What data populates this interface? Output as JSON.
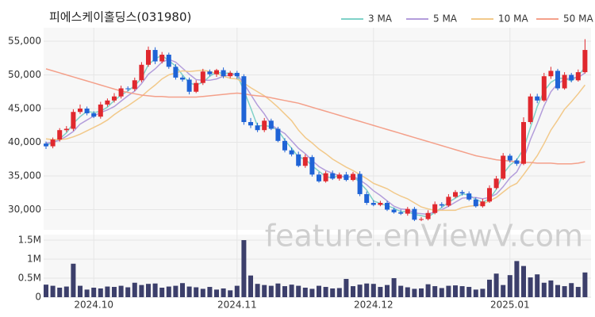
{
  "chart_data": [
    {
      "type": "candlestick",
      "title": "피에스케이홀딩스(031980)",
      "watermark": "feature.enViewV.com",
      "categories": [
        null,
        null,
        null,
        null,
        null,
        null,
        null,
        "2024.10",
        null,
        null,
        null,
        null,
        null,
        null,
        null,
        null,
        null,
        null,
        null,
        null,
        null,
        null,
        null,
        null,
        null,
        null,
        null,
        null,
        "2024.11",
        null,
        null,
        null,
        null,
        null,
        null,
        null,
        null,
        null,
        null,
        null,
        null,
        null,
        null,
        null,
        null,
        null,
        null,
        null,
        "2024.12",
        null,
        null,
        null,
        null,
        null,
        null,
        null,
        null,
        null,
        null,
        null,
        null,
        null,
        null,
        null,
        null,
        null,
        null,
        null,
        "2025.01",
        null,
        null,
        null,
        null,
        null,
        null,
        null,
        null,
        null,
        null,
        null
      ],
      "up_color": "#e0282e",
      "down_color": "#1f63d6",
      "open": [
        39800,
        39400,
        40400,
        41800,
        42000,
        44500,
        45000,
        44300,
        43800,
        45600,
        46200,
        46800,
        48000,
        47900,
        49200,
        51500,
        53700,
        52000,
        53000,
        51200,
        49600,
        49300,
        47500,
        48800,
        50500,
        50100,
        50700,
        49800,
        50300,
        49800,
        43000,
        42500,
        41800,
        43200,
        42000,
        40200,
        38800,
        38200,
        36500,
        37800,
        35200,
        34200,
        35400,
        34600,
        35200,
        34400,
        35300,
        32300,
        31000,
        30700,
        31000,
        30000,
        29600,
        29400,
        30100,
        28500,
        28600,
        29500,
        30800,
        30600,
        31900,
        32600,
        32400,
        31500,
        30500,
        31200,
        33200,
        34600,
        38000,
        37300,
        36800,
        43000,
        46800,
        46200,
        49800,
        50600,
        48000,
        50000,
        49200,
        50400
      ],
      "high": [
        40100,
        40700,
        42100,
        42400,
        44900,
        45600,
        45300,
        44600,
        46000,
        46500,
        47300,
        48400,
        48300,
        49600,
        51900,
        54200,
        54100,
        53400,
        53300,
        51600,
        49900,
        49600,
        49200,
        50900,
        50800,
        50900,
        51100,
        50600,
        50600,
        50100,
        43600,
        42900,
        43600,
        43500,
        42300,
        40600,
        39200,
        38600,
        38200,
        38100,
        35600,
        35700,
        35800,
        35500,
        35600,
        35600,
        35700,
        32700,
        31400,
        31300,
        31300,
        30300,
        30000,
        30400,
        30400,
        28900,
        29900,
        31200,
        31100,
        32300,
        32900,
        32900,
        32700,
        31800,
        31600,
        33600,
        35000,
        38400,
        38300,
        37600,
        43700,
        47200,
        47200,
        50300,
        51200,
        50900,
        50400,
        50300,
        50800,
        55300
      ],
      "low": [
        39000,
        39100,
        40100,
        41500,
        41700,
        44200,
        44000,
        43600,
        43500,
        45300,
        45900,
        46500,
        47600,
        47600,
        48900,
        51200,
        51600,
        51700,
        50900,
        49300,
        49000,
        47100,
        47300,
        48500,
        49800,
        49700,
        49500,
        49500,
        49400,
        42600,
        42100,
        41500,
        41500,
        41800,
        40000,
        38500,
        37900,
        36300,
        36200,
        34900,
        34000,
        34000,
        34400,
        34300,
        34200,
        34200,
        32000,
        30700,
        30500,
        30500,
        29800,
        29400,
        29200,
        29100,
        28300,
        28300,
        28400,
        29300,
        30300,
        30400,
        31700,
        32100,
        31300,
        30300,
        30300,
        31000,
        33000,
        34400,
        37000,
        36500,
        36600,
        42700,
        45800,
        46000,
        49400,
        47700,
        47800,
        48900,
        49000,
        50200
      ],
      "close": [
        39400,
        40400,
        41800,
        42000,
        44500,
        45000,
        44300,
        43800,
        45600,
        46200,
        46800,
        48000,
        47900,
        49200,
        51500,
        53700,
        52000,
        53000,
        51200,
        49600,
        49300,
        47500,
        48800,
        50500,
        50100,
        50700,
        49800,
        50300,
        49800,
        43000,
        42500,
        41800,
        43200,
        42000,
        40200,
        38800,
        38200,
        36500,
        37800,
        35200,
        34200,
        35400,
        34600,
        35200,
        34400,
        35300,
        32300,
        31000,
        30700,
        31000,
        30000,
        29600,
        29400,
        30100,
        28500,
        28600,
        29500,
        30800,
        30600,
        31900,
        32600,
        32400,
        31500,
        30500,
        31200,
        33200,
        34600,
        38000,
        37300,
        36800,
        43000,
        46800,
        46200,
        49800,
        50600,
        48000,
        50000,
        49200,
        50400,
        53700
      ],
      "series": [
        {
          "name": "3 MA",
          "color": "#7fd1c8",
          "values": [
            39600,
            39900,
            40500,
            41400,
            42800,
            43800,
            44600,
            44400,
            44600,
            45200,
            46200,
            47000,
            47600,
            48400,
            49500,
            51500,
            52400,
            52900,
            52100,
            51300,
            50000,
            48800,
            48500,
            48900,
            49800,
            50400,
            50200,
            50300,
            50000,
            47700,
            45100,
            42400,
            42500,
            42300,
            41800,
            40300,
            39100,
            37800,
            37500,
            36500,
            35700,
            34900,
            34700,
            35100,
            34700,
            35000,
            34000,
            32900,
            31300,
            30900,
            30600,
            30200,
            29700,
            29700,
            29300,
            29100,
            28900,
            29600,
            30300,
            31100,
            31700,
            32300,
            32200,
            31500,
            31100,
            31600,
            33000,
            35300,
            36600,
            37400,
            39000,
            42200,
            45300,
            47600,
            48900,
            49500,
            49500,
            49100,
            49900,
            51100
          ]
        },
        {
          "name": "5 MA",
          "color": "#b39ddb",
          "values": [
            39900,
            40000,
            40300,
            40900,
            41600,
            42700,
            43300,
            43900,
            44400,
            44800,
            45300,
            46100,
            46900,
            47600,
            48700,
            50100,
            50900,
            51900,
            52300,
            51900,
            51000,
            50100,
            49300,
            49200,
            49200,
            49400,
            49800,
            50000,
            50100,
            48700,
            47100,
            45500,
            44200,
            42600,
            41900,
            41300,
            40200,
            39100,
            38300,
            37300,
            36400,
            35800,
            35400,
            35000,
            34800,
            35000,
            34400,
            33700,
            32800,
            32100,
            31300,
            30500,
            30100,
            30000,
            29500,
            29400,
            29300,
            29700,
            30000,
            30500,
            31100,
            31700,
            31800,
            31800,
            31600,
            31800,
            32300,
            33400,
            34700,
            35600,
            37500,
            40400,
            42800,
            45400,
            47500,
            48700,
            49300,
            49600,
            49600,
            50300
          ]
        },
        {
          "name": "10 MA",
          "color": "#f2c98a",
          "values": [
            40500,
            40400,
            40400,
            40500,
            40800,
            41200,
            41700,
            42200,
            42700,
            43300,
            44100,
            44800,
            45400,
            46100,
            46800,
            47700,
            48500,
            49400,
            50000,
            50300,
            50600,
            50500,
            50600,
            50700,
            50500,
            50200,
            49800,
            49500,
            49400,
            48800,
            48100,
            47500,
            46900,
            46100,
            45200,
            44200,
            43200,
            41800,
            40700,
            39900,
            39000,
            38300,
            37500,
            36900,
            36300,
            35800,
            35200,
            34600,
            33900,
            33500,
            33100,
            32500,
            32000,
            31600,
            31000,
            30400,
            30100,
            29900,
            29900,
            29900,
            29900,
            30300,
            30500,
            30600,
            30800,
            31300,
            31800,
            32600,
            33400,
            33900,
            35200,
            36600,
            38000,
            39800,
            41800,
            43300,
            44900,
            46000,
            47200,
            48500
          ]
        },
        {
          "name": "50 MA",
          "color": "#f4a08a",
          "values": [
            50900,
            50600,
            50300,
            50000,
            49700,
            49400,
            49100,
            48800,
            48500,
            48200,
            47900,
            47600,
            47400,
            47200,
            47000,
            46900,
            46800,
            46800,
            46700,
            46700,
            46700,
            46700,
            46700,
            46800,
            46900,
            47000,
            47100,
            47200,
            47300,
            47200,
            47000,
            46900,
            46800,
            46600,
            46400,
            46200,
            46000,
            45800,
            45500,
            45200,
            44900,
            44600,
            44300,
            44000,
            43700,
            43400,
            43100,
            42800,
            42500,
            42200,
            41900,
            41600,
            41300,
            41000,
            40700,
            40400,
            40100,
            39800,
            39500,
            39200,
            38900,
            38600,
            38300,
            38000,
            37800,
            37600,
            37400,
            37300,
            37200,
            37100,
            37000,
            37000,
            36900,
            36900,
            36900,
            36800,
            36800,
            36800,
            36900,
            37100
          ]
        }
      ],
      "ylim": [
        27000,
        57000
      ],
      "yticks": [
        {
          "value": 30000,
          "label": "30,000"
        },
        {
          "value": 35000,
          "label": "35,000"
        },
        {
          "value": 40000,
          "label": "40,000"
        },
        {
          "value": 45000,
          "label": "45,000"
        },
        {
          "value": 50000,
          "label": "50,000"
        },
        {
          "value": 55000,
          "label": "55,000"
        }
      ],
      "grid": true
    },
    {
      "type": "bar",
      "color": "#3c3f6b",
      "values": [
        330000,
        300000,
        250000,
        280000,
        880000,
        300000,
        200000,
        250000,
        230000,
        280000,
        270000,
        300000,
        260000,
        380000,
        320000,
        350000,
        360000,
        250000,
        280000,
        300000,
        370000,
        280000,
        260000,
        220000,
        270000,
        200000,
        230000,
        180000,
        300000,
        1500000,
        570000,
        350000,
        320000,
        300000,
        360000,
        290000,
        330000,
        300000,
        250000,
        220000,
        300000,
        270000,
        230000,
        240000,
        480000,
        290000,
        330000,
        360000,
        350000,
        270000,
        320000,
        500000,
        300000,
        260000,
        220000,
        230000,
        340000,
        290000,
        240000,
        300000,
        310000,
        290000,
        270000,
        200000,
        220000,
        460000,
        620000,
        320000,
        580000,
        950000,
        820000,
        520000,
        600000,
        380000,
        440000,
        320000,
        290000,
        370000,
        270000,
        650000
      ],
      "ylim": [
        0,
        1600000
      ],
      "yticks": [
        0,
        {
          "value": 500000,
          "label": "0.5M"
        },
        {
          "value": 1000000,
          "label": "1M"
        },
        {
          "value": 1500000,
          "label": "1.5M"
        }
      ],
      "grid": true
    }
  ]
}
